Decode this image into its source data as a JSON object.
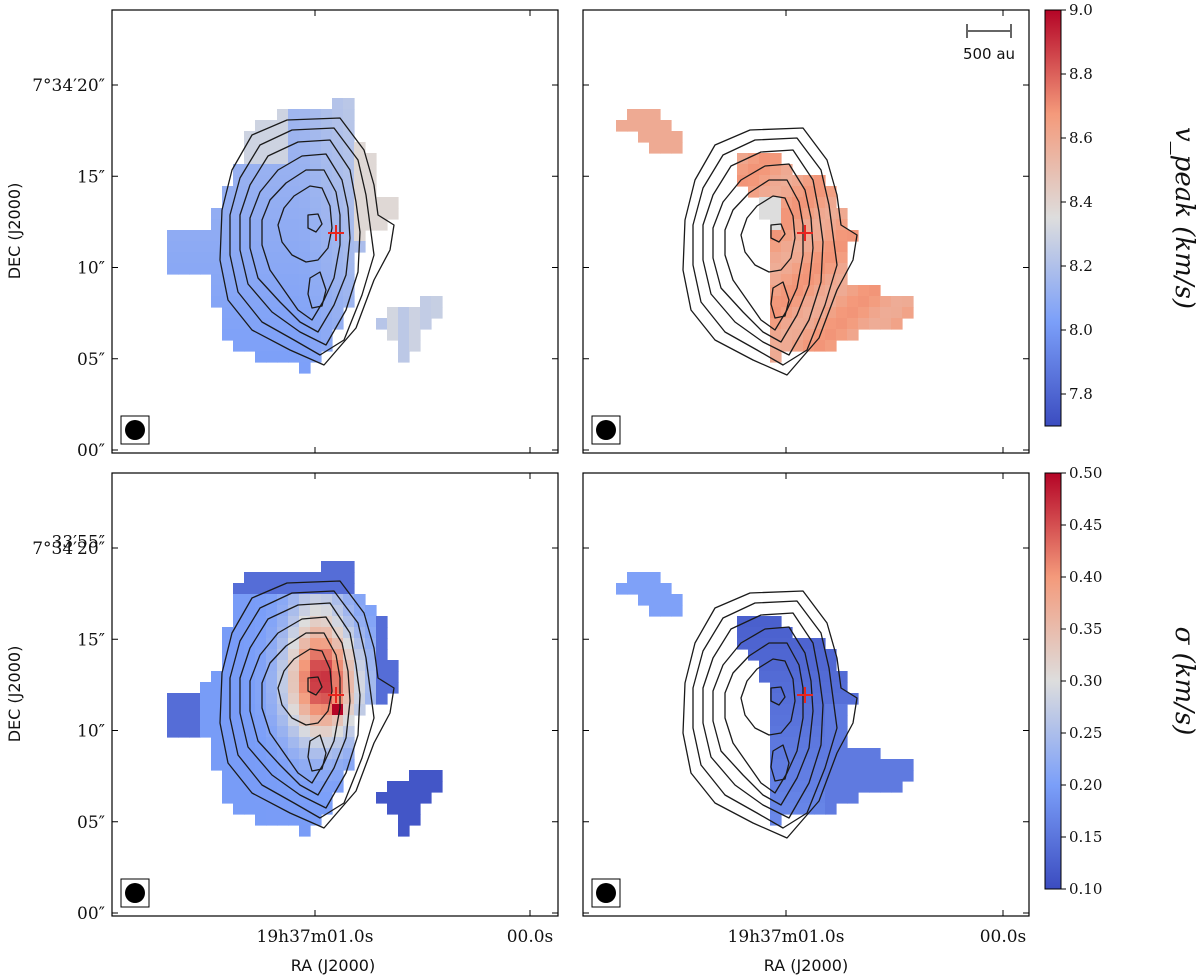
{
  "chart_data": {
    "type": "heatmap",
    "panels": [
      {
        "id": "vpeak-left",
        "row": "top",
        "col": "left",
        "colormap": "coolwarm",
        "colorbar": "vpeak",
        "contours": true,
        "source_marker": "+",
        "beam": true,
        "map": "left"
      },
      {
        "id": "vpeak-right",
        "row": "top",
        "col": "right",
        "colormap": "coolwarm",
        "colorbar": "vpeak",
        "contours": true,
        "source_marker": "+",
        "beam": true,
        "scale_bar": "500 au",
        "map": "right"
      },
      {
        "id": "sigma-left",
        "row": "bottom",
        "col": "left",
        "colormap": "coolwarm",
        "colorbar": "sigma",
        "contours": true,
        "source_marker": "+",
        "beam": true,
        "map": "left"
      },
      {
        "id": "sigma-right",
        "row": "bottom",
        "col": "right",
        "colormap": "coolwarm",
        "colorbar": "sigma",
        "contours": true,
        "source_marker": "+",
        "beam": true,
        "map": "right"
      }
    ],
    "dec_ticks": [
      "7°34′20″",
      "15″",
      "10″",
      "05″",
      "00″",
      "33′55″"
    ],
    "dec_tick_values_arcsec": [
      20,
      15,
      10,
      5,
      0,
      -5
    ],
    "ra_ticks": [
      "19h37m01.0s",
      "00.0s"
    ],
    "xlabel": "RA (J2000)",
    "ylabel": "DEC (J2000)",
    "scale_bar_label": "500 au",
    "colorbars": [
      {
        "id": "vpeak",
        "title": "v_peak (km/s)",
        "range": [
          7.7,
          9.0
        ],
        "ticks": [
          "9.0",
          "8.8",
          "8.6",
          "8.4",
          "8.2",
          "8.0",
          "7.8"
        ],
        "tick_values": [
          9.0,
          8.8,
          8.6,
          8.4,
          8.2,
          8.0,
          7.8
        ]
      },
      {
        "id": "sigma",
        "title": "σ (km/s)",
        "range": [
          0.1,
          0.5
        ],
        "ticks": [
          "0.50",
          "0.45",
          "0.40",
          "0.35",
          "0.30",
          "0.25",
          "0.20",
          "0.15",
          "0.10"
        ],
        "tick_values": [
          0.5,
          0.45,
          0.4,
          0.35,
          0.3,
          0.25,
          0.2,
          0.15,
          0.1
        ]
      }
    ],
    "annotations": [
      "500 au"
    ],
    "colors": {
      "marker": "#e8251f",
      "contour": "#1a1a1a",
      "beam": "#000000"
    }
  }
}
